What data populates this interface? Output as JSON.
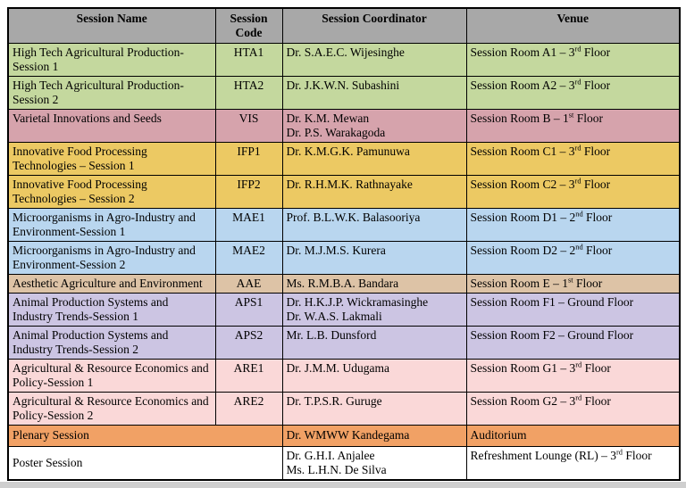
{
  "colors": {
    "page_background": "#ffffff",
    "bottom_strip": "#cfcfcf",
    "border": "#000000",
    "header_background": "#a8a8a8",
    "row_green": "#c4d89e",
    "row_rose": "#d6a3ac",
    "row_gold": "#ecc963",
    "row_blue": "#b9d6ef",
    "row_tan": "#ddc3a6",
    "row_lavender": "#ccc5e3",
    "row_pink": "#fad8d8",
    "row_orange": "#f1a165",
    "row_white": "#ffffff"
  },
  "table": {
    "header": {
      "background": "#a8a8a8",
      "columns": [
        "Session Name",
        "Session Code",
        "Session Coordinator",
        "Venue"
      ]
    },
    "rows": [
      {
        "name": "High Tech Agricultural Production-Session 1",
        "code": "HTA1",
        "coordinators": [
          "Dr. S.A.E.C. Wijesinghe"
        ],
        "venue": "Session Room A1 – 3rd Floor",
        "color": "#c4d89e"
      },
      {
        "name": "High Tech Agricultural Production-Session 2",
        "code": "HTA2",
        "coordinators": [
          "Dr. J.K.W.N. Subashini"
        ],
        "venue": "Session Room A2 – 3rd Floor",
        "color": "#c4d89e"
      },
      {
        "name": "Varietal Innovations and Seeds",
        "code": "VIS",
        "coordinators": [
          "Dr. K.M. Mewan",
          "Dr. P.S. Warakagoda"
        ],
        "venue": "Session Room B – 1st Floor",
        "color": "#d6a3ac"
      },
      {
        "name": "Innovative Food Processing Technologies – Session 1",
        "code": "IFP1",
        "coordinators": [
          "Dr. K.M.G.K. Pamunuwa"
        ],
        "venue": "Session Room C1 – 3rd Floor",
        "color": "#ecc963"
      },
      {
        "name": "Innovative Food Processing Technologies – Session 2",
        "code": "IFP2",
        "coordinators": [
          "Dr. R.H.M.K. Rathnayake"
        ],
        "venue": "Session Room C2 – 3rd Floor",
        "color": "#ecc963"
      },
      {
        "name": "Microorganisms in Agro-Industry and Environment-Session 1",
        "code": "MAE1",
        "coordinators": [
          "Prof. B.L.W.K. Balasooriya"
        ],
        "venue": "Session Room D1 – 2nd Floor",
        "color": "#b9d6ef"
      },
      {
        "name": "Microorganisms in Agro-Industry and Environment-Session 2",
        "code": "MAE2",
        "coordinators": [
          "Dr. M.J.M.S. Kurera"
        ],
        "venue": "Session Room D2 – 2nd Floor",
        "color": "#b9d6ef"
      },
      {
        "name": "Aesthetic Agriculture and Environment",
        "code": "AAE",
        "coordinators": [
          "Ms. R.M.B.A. Bandara"
        ],
        "venue": "Session Room E – 1st Floor",
        "color": "#ddc3a6"
      },
      {
        "name": "Animal Production Systems and Industry Trends-Session 1",
        "code": "APS1",
        "coordinators": [
          "Dr. H.K.J.P. Wickramasinghe",
          "Dr. W.A.S. Lakmali"
        ],
        "venue": "Session Room F1 – Ground Floor",
        "color": "#ccc5e3"
      },
      {
        "name": "Animal Production Systems and Industry Trends-Session 2",
        "code": "APS2",
        "coordinators": [
          "Mr. L.B. Dunsford"
        ],
        "venue": "Session Room F2 – Ground Floor",
        "color": "#ccc5e3"
      },
      {
        "name": "Agricultural & Resource Economics and Policy-Session 1",
        "code": "ARE1",
        "coordinators": [
          "Dr. J.M.M. Udugama"
        ],
        "venue": "Session Room G1 – 3rd Floor",
        "color": "#fad8d8"
      },
      {
        "name": "Agricultural & Resource Economics and Policy-Session 2",
        "code": "ARE2",
        "coordinators": [
          "Dr. T.P.S.R. Guruge"
        ],
        "venue": "Session Room G2 – 3rd Floor",
        "color": "#fad8d8"
      },
      {
        "name": "Plenary Session",
        "code": null,
        "coordinators": [
          "Dr. WMWW Kandegama"
        ],
        "venue": "Auditorium",
        "color": "#f1a165"
      },
      {
        "name": "Poster Session",
        "code": null,
        "coordinators": [
          "Dr. G.H.I. Anjalee",
          "Ms. L.H.N. De Silva"
        ],
        "venue": "Refreshment Lounge (RL) – 3rd Floor",
        "color": "#ffffff"
      }
    ]
  }
}
